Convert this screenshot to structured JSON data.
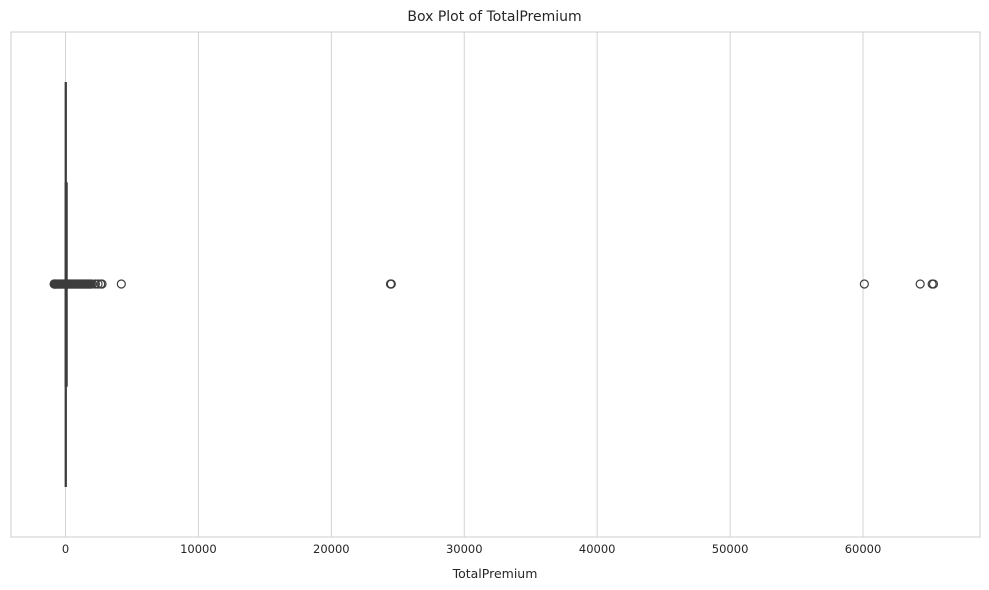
{
  "chart_data": {
    "type": "boxplot",
    "orientation": "horizontal",
    "title": "Box Plot of TotalPremium",
    "xlabel": "TotalPremium",
    "ylabel": "",
    "xlim": [
      -4100,
      68800
    ],
    "xticks": [
      0,
      10000,
      20000,
      30000,
      40000,
      50000,
      60000
    ],
    "xtick_labels": [
      "0",
      "10000",
      "20000",
      "30000",
      "40000",
      "50000",
      "60000"
    ],
    "grid": "vertical",
    "colors": {
      "stroke": "#3d3d3d",
      "grid": "#d3d3d3",
      "spine": "#cccccc"
    },
    "box": {
      "whisker_low": -10,
      "q1": 0,
      "median": 0,
      "q3": 20,
      "whisker_high": 50
    },
    "outliers_dense_range": [
      -850,
      1850
    ],
    "outliers": [
      -850,
      -780,
      -700,
      1900,
      2000,
      2250,
      2450,
      2650,
      2750,
      4200,
      24450,
      24480,
      24510,
      60100,
      64300,
      65200,
      65300
    ]
  }
}
